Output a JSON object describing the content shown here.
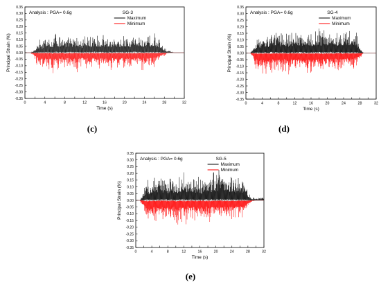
{
  "chart_data": [
    {
      "panel": "(c)",
      "type": "line",
      "analysis": "Analysis : PGA= 0.6g",
      "gauge": "SG-3",
      "xlabel": "Time (s)",
      "ylabel": "Principal Strain (%)",
      "xlim": [
        0,
        32
      ],
      "ylim": [
        -0.35,
        0.35
      ],
      "xticks": [
        "0",
        "2",
        "4",
        "6",
        "8",
        "10",
        "12",
        "14",
        "16",
        "18",
        "20",
        "22",
        "24",
        "26",
        "28",
        "30",
        "32"
      ],
      "yticks": [
        "0.35",
        "0.30",
        "0.25",
        "0.20",
        "0.15",
        "0.10",
        "0.05",
        "0.00",
        "-0.05",
        "-0.10",
        "-0.15",
        "-0.20",
        "-0.25",
        "-0.30",
        "-0.35"
      ],
      "legend": [
        "Maximum",
        "Minimum"
      ],
      "series": [
        {
          "name": "Maximum",
          "color": "#000000",
          "x": [
            0,
            1,
            1.5,
            2,
            2.5,
            3,
            3.5,
            4,
            4.5,
            5,
            5.5,
            6,
            6.3,
            6.5,
            7,
            7.5,
            8,
            8.5,
            9,
            9.5,
            10,
            10.5,
            11,
            11.5,
            12,
            12.5,
            13,
            13.5,
            14,
            14.5,
            15,
            15.5,
            16,
            16.5,
            17,
            17.5,
            18,
            18.5,
            19,
            19.5,
            20,
            20.5,
            21,
            21.5,
            22,
            22.5,
            23,
            23.5,
            24,
            24.5,
            25,
            25.5,
            26,
            26.5,
            27,
            27.5,
            28,
            28.5,
            29,
            29.5,
            30,
            31,
            32
          ],
          "y": [
            0.0,
            0.0,
            0.01,
            0.04,
            0.08,
            0.1,
            0.08,
            0.12,
            0.15,
            0.14,
            0.1,
            0.19,
            0.25,
            0.14,
            0.12,
            0.16,
            0.12,
            0.11,
            0.15,
            0.13,
            0.12,
            0.14,
            0.12,
            0.1,
            0.17,
            0.12,
            0.14,
            0.11,
            0.18,
            0.13,
            0.12,
            0.15,
            0.13,
            0.12,
            0.14,
            0.11,
            0.16,
            0.13,
            0.11,
            0.14,
            0.12,
            0.15,
            0.11,
            0.13,
            0.17,
            0.12,
            0.15,
            0.13,
            0.12,
            0.16,
            0.14,
            0.13,
            0.15,
            0.12,
            0.1,
            0.08,
            0.04,
            0.02,
            0.03,
            0.01,
            0.0,
            0.0,
            0.0
          ]
        },
        {
          "name": "Minimum",
          "color": "#ff0000",
          "x": [
            0,
            1,
            1.5,
            2,
            2.5,
            3,
            3.5,
            4,
            4.5,
            5,
            5.5,
            6,
            6.5,
            7,
            7.5,
            8,
            8.5,
            9,
            9.5,
            10,
            10.5,
            11,
            11.5,
            12,
            12.5,
            13,
            13.5,
            14,
            14.5,
            15,
            15.5,
            16,
            16.5,
            17,
            17.5,
            18,
            18.5,
            19,
            19.5,
            20,
            20.5,
            21,
            21.5,
            22,
            22.5,
            23,
            23.5,
            24,
            24.5,
            25,
            25.5,
            26,
            26.5,
            27,
            27.5,
            28,
            28.5,
            29,
            30,
            31,
            32
          ],
          "y": [
            0.0,
            0.0,
            -0.02,
            -0.06,
            -0.1,
            -0.15,
            -0.12,
            -0.1,
            -0.14,
            -0.12,
            -0.18,
            -0.11,
            -0.13,
            -0.12,
            -0.1,
            -0.16,
            -0.11,
            -0.12,
            -0.14,
            -0.1,
            -0.15,
            -0.12,
            -0.11,
            -0.14,
            -0.12,
            -0.16,
            -0.11,
            -0.12,
            -0.15,
            -0.12,
            -0.11,
            -0.13,
            -0.12,
            -0.16,
            -0.11,
            -0.14,
            -0.12,
            -0.15,
            -0.11,
            -0.13,
            -0.12,
            -0.11,
            -0.14,
            -0.12,
            -0.13,
            -0.1,
            -0.14,
            -0.12,
            -0.11,
            -0.12,
            -0.1,
            -0.11,
            -0.08,
            -0.06,
            -0.04,
            -0.03,
            -0.01,
            0.0,
            0.0,
            0.0,
            0.0
          ]
        }
      ]
    },
    {
      "panel": "(d)",
      "type": "line",
      "analysis": "Analysis : PGA= 0.6g",
      "gauge": "SG-4",
      "xlabel": "Time (s)",
      "ylabel": "Principal Strain (%)",
      "xlim": [
        0,
        32
      ],
      "ylim": [
        -0.35,
        0.35
      ],
      "xticks": [
        "0",
        "2",
        "4",
        "6",
        "8",
        "10",
        "12",
        "14",
        "16",
        "18",
        "20",
        "22",
        "24",
        "26",
        "28",
        "30",
        "32"
      ],
      "yticks": [
        "0.35",
        "0.30",
        "0.25",
        "0.20",
        "0.15",
        "0.10",
        "0.05",
        "0.00",
        "-0.05",
        "-0.10",
        "-0.15",
        "-0.20",
        "-0.25",
        "-0.30",
        "-0.35"
      ],
      "legend": [
        "Maximum",
        "Minimum"
      ],
      "series": [
        {
          "name": "Maximum",
          "color": "#000000",
          "x": [
            0,
            1,
            1.5,
            2,
            2.5,
            3,
            3.5,
            4,
            4.5,
            5,
            5.5,
            6,
            6.3,
            6.5,
            7,
            7.5,
            8,
            8.5,
            9,
            9.5,
            10,
            10.5,
            11,
            11.5,
            12,
            12.5,
            13,
            13.5,
            14,
            14.5,
            15,
            15.5,
            16,
            16.5,
            17,
            17.5,
            18,
            18.5,
            19,
            19.5,
            20,
            20.5,
            21,
            21.5,
            22,
            22.5,
            23,
            23.5,
            24,
            24.5,
            25,
            25.5,
            26,
            26.5,
            27,
            27.5,
            28,
            28.5,
            29,
            30,
            31,
            32
          ],
          "y": [
            0.0,
            0.0,
            0.02,
            0.06,
            0.1,
            0.12,
            0.1,
            0.14,
            0.12,
            0.15,
            0.12,
            0.2,
            0.26,
            0.16,
            0.14,
            0.17,
            0.13,
            0.15,
            0.18,
            0.14,
            0.16,
            0.13,
            0.17,
            0.15,
            0.19,
            0.14,
            0.16,
            0.18,
            0.15,
            0.19,
            0.14,
            0.17,
            0.15,
            0.13,
            0.18,
            0.16,
            0.19,
            0.15,
            0.17,
            0.2,
            0.16,
            0.18,
            0.24,
            0.17,
            0.19,
            0.15,
            0.2,
            0.17,
            0.16,
            0.18,
            0.15,
            0.17,
            0.16,
            0.14,
            0.17,
            0.12,
            0.06,
            0.02,
            0.0,
            0.0,
            0.0,
            0.0
          ]
        },
        {
          "name": "Minimum",
          "color": "#ff0000",
          "x": [
            0,
            1,
            1.5,
            2,
            2.5,
            3,
            3.5,
            4,
            4.5,
            5,
            5.5,
            6,
            6.5,
            7,
            7.5,
            8,
            8.5,
            9,
            9.5,
            10,
            10.5,
            11,
            11.5,
            12,
            12.5,
            13,
            13.5,
            14,
            14.5,
            15,
            15.5,
            16,
            16.5,
            17,
            17.5,
            18,
            18.5,
            19,
            19.5,
            20,
            20.5,
            21,
            21.5,
            22,
            22.5,
            23,
            23.5,
            24,
            24.5,
            25,
            25.5,
            26,
            26.5,
            27,
            27.5,
            28,
            28.5,
            29,
            30,
            31,
            32
          ],
          "y": [
            0.0,
            0.0,
            -0.03,
            -0.08,
            -0.12,
            -0.15,
            -0.13,
            -0.17,
            -0.14,
            -0.16,
            -0.12,
            -0.18,
            -0.14,
            -0.12,
            -0.15,
            -0.13,
            -0.16,
            -0.14,
            -0.12,
            -0.15,
            -0.17,
            -0.13,
            -0.15,
            -0.14,
            -0.16,
            -0.12,
            -0.15,
            -0.14,
            -0.13,
            -0.16,
            -0.14,
            -0.15,
            -0.13,
            -0.16,
            -0.12,
            -0.14,
            -0.15,
            -0.13,
            -0.14,
            -0.12,
            -0.15,
            -0.13,
            -0.14,
            -0.12,
            -0.13,
            -0.14,
            -0.12,
            -0.13,
            -0.11,
            -0.12,
            -0.13,
            -0.11,
            -0.12,
            -0.1,
            -0.08,
            -0.05,
            -0.02,
            0.0,
            0.0,
            0.0,
            0.0
          ]
        }
      ]
    },
    {
      "panel": "(e)",
      "type": "line",
      "analysis": "Analysis : PGA= 0.6g",
      "gauge": "SG-5",
      "xlabel": "Time (s)",
      "ylabel": "Principal Strain (%)",
      "xlim": [
        0,
        32
      ],
      "ylim": [
        -0.35,
        0.35
      ],
      "xticks": [
        "0",
        "2",
        "4",
        "6",
        "8",
        "10",
        "12",
        "14",
        "16",
        "18",
        "20",
        "22",
        "24",
        "26",
        "28",
        "30",
        "32"
      ],
      "yticks": [
        "0.35",
        "0.30",
        "0.25",
        "0.20",
        "0.15",
        "0.10",
        "0.05",
        "0.00",
        "-0.05",
        "-0.10",
        "-0.15",
        "-0.20",
        "-0.25",
        "-0.30",
        "-0.35"
      ],
      "legend": [
        "Maximum",
        "Minimum"
      ],
      "series": [
        {
          "name": "Maximum",
          "color": "#000000",
          "x": [
            0,
            1,
            1.5,
            2,
            2.5,
            3,
            3.5,
            4,
            4.5,
            5,
            5.5,
            6,
            6.3,
            6.5,
            7,
            7.5,
            8,
            8.5,
            9,
            9.5,
            10,
            10.5,
            11,
            11.5,
            12,
            12.5,
            13,
            13.5,
            14,
            14.5,
            15,
            15.5,
            16,
            16.5,
            17,
            17.5,
            18,
            18.5,
            19,
            19.5,
            20,
            20.5,
            21,
            21.5,
            22,
            22.5,
            23,
            23.5,
            24,
            24.5,
            25,
            25.5,
            26,
            26.5,
            27,
            27.5,
            28,
            28.5,
            29,
            30,
            31,
            32
          ],
          "y": [
            0.0,
            0.0,
            0.03,
            0.08,
            0.13,
            0.16,
            0.12,
            0.15,
            0.18,
            0.14,
            0.17,
            0.2,
            0.22,
            0.15,
            0.14,
            0.18,
            0.15,
            0.16,
            0.2,
            0.15,
            0.17,
            0.15,
            0.19,
            0.16,
            0.21,
            0.15,
            0.17,
            0.19,
            0.16,
            0.2,
            0.15,
            0.18,
            0.16,
            0.14,
            0.19,
            0.17,
            0.2,
            0.16,
            0.18,
            0.21,
            0.18,
            0.2,
            0.28,
            0.2,
            0.22,
            0.17,
            0.21,
            0.18,
            0.17,
            0.2,
            0.16,
            0.18,
            0.17,
            0.15,
            0.17,
            0.13,
            0.08,
            0.04,
            0.02,
            0.02,
            0.02,
            0.02
          ]
        },
        {
          "name": "Minimum",
          "color": "#ff0000",
          "x": [
            0,
            1,
            1.5,
            2,
            2.5,
            3,
            3.5,
            4,
            4.5,
            5,
            5.5,
            6,
            6.5,
            7,
            7.5,
            8,
            8.5,
            9,
            9.5,
            10,
            10.5,
            11,
            11.5,
            12,
            12.5,
            13,
            13.5,
            14,
            14.5,
            15,
            15.5,
            16,
            16.5,
            17,
            17.5,
            18,
            18.5,
            19,
            19.5,
            20,
            20.5,
            21,
            21.5,
            22,
            22.5,
            23,
            23.5,
            24,
            24.5,
            25,
            25.5,
            26,
            26.5,
            27,
            27.5,
            28,
            28.5,
            29,
            30,
            31,
            32
          ],
          "y": [
            0.0,
            0.0,
            -0.04,
            -0.09,
            -0.13,
            -0.2,
            -0.15,
            -0.18,
            -0.14,
            -0.17,
            -0.13,
            -0.19,
            -0.15,
            -0.13,
            -0.17,
            -0.14,
            -0.18,
            -0.15,
            -0.13,
            -0.17,
            -0.19,
            -0.14,
            -0.16,
            -0.15,
            -0.18,
            -0.13,
            -0.16,
            -0.15,
            -0.14,
            -0.19,
            -0.15,
            -0.17,
            -0.14,
            -0.21,
            -0.13,
            -0.15,
            -0.17,
            -0.14,
            -0.15,
            -0.13,
            -0.16,
            -0.14,
            -0.15,
            -0.13,
            -0.14,
            -0.15,
            -0.13,
            -0.14,
            -0.12,
            -0.13,
            -0.14,
            -0.12,
            -0.13,
            -0.11,
            -0.09,
            -0.06,
            -0.03,
            -0.01,
            0.0,
            0.0,
            0.0
          ]
        }
      ]
    }
  ]
}
